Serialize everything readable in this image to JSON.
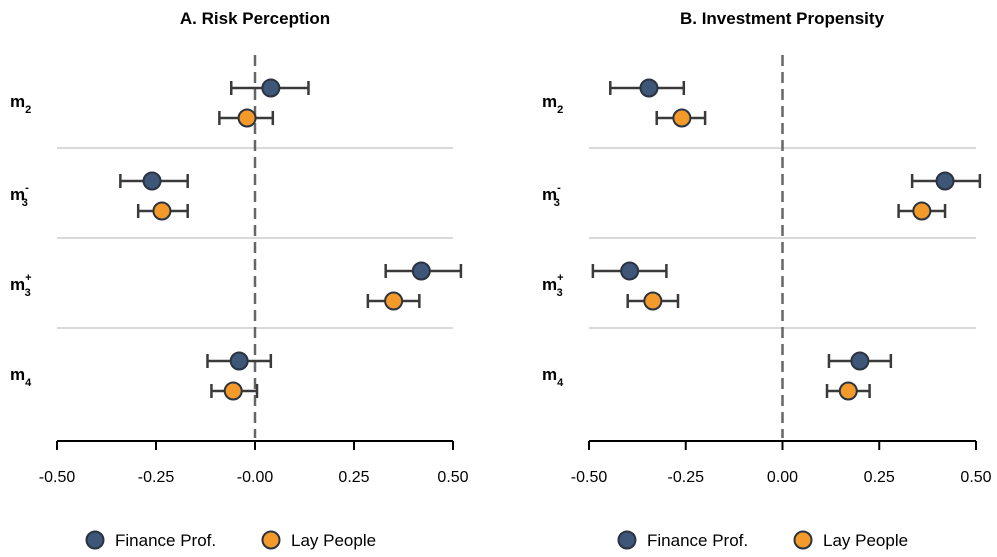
{
  "chart_data": [
    {
      "type": "scatter",
      "title": "A. Risk Perception",
      "xlabel": "",
      "ylabel": "",
      "xlim": [
        -0.5,
        0.5
      ],
      "xticks": [
        "-0.50",
        "-0.25",
        "-0.00",
        "0.25",
        "0.50"
      ],
      "reference_line_x": 0,
      "grid": "horizontal separators between categories",
      "categories": [
        {
          "base": "m",
          "sub": "2",
          "sup": ""
        },
        {
          "base": "m",
          "sub": "3",
          "sup": "-"
        },
        {
          "base": "m",
          "sub": "3",
          "sup": "+"
        },
        {
          "base": "m",
          "sub": "4",
          "sup": ""
        }
      ],
      "series": [
        {
          "name": "Finance Prof.",
          "values": [
            0.04,
            -0.26,
            0.42,
            -0.04
          ],
          "ci_low": [
            -0.06,
            -0.34,
            0.33,
            -0.12
          ],
          "ci_high": [
            0.135,
            -0.17,
            0.52,
            0.04
          ]
        },
        {
          "name": "Lay People",
          "values": [
            -0.02,
            -0.235,
            0.35,
            -0.055
          ],
          "ci_low": [
            -0.09,
            -0.295,
            0.285,
            -0.11
          ],
          "ci_high": [
            0.045,
            -0.17,
            0.415,
            0.005
          ]
        }
      ],
      "legend": "bottom"
    },
    {
      "type": "scatter",
      "title": "B. Investment Propensity",
      "xlabel": "",
      "ylabel": "",
      "xlim": [
        -0.5,
        0.5
      ],
      "xticks": [
        "-0.50",
        "-0.25",
        "0.00",
        "0.25",
        "0.50"
      ],
      "reference_line_x": 0,
      "grid": "horizontal separators between categories",
      "categories": [
        {
          "base": "m",
          "sub": "2",
          "sup": ""
        },
        {
          "base": "m",
          "sub": "3",
          "sup": "-"
        },
        {
          "base": "m",
          "sub": "3",
          "sup": "+"
        },
        {
          "base": "m",
          "sub": "4",
          "sup": ""
        }
      ],
      "series": [
        {
          "name": "Finance Prof.",
          "values": [
            -0.345,
            0.42,
            -0.395,
            0.2
          ],
          "ci_low": [
            -0.445,
            0.335,
            -0.49,
            0.12
          ],
          "ci_high": [
            -0.255,
            0.51,
            -0.3,
            0.28
          ]
        },
        {
          "name": "Lay People",
          "values": [
            -0.26,
            0.36,
            -0.335,
            0.17
          ],
          "ci_low": [
            -0.325,
            0.3,
            -0.4,
            0.115
          ],
          "ci_high": [
            -0.2,
            0.42,
            -0.27,
            0.225
          ]
        }
      ],
      "legend": "bottom"
    }
  ],
  "colors": {
    "finance": "#3e5677",
    "lay": "#f49a2b",
    "marker_stroke": "#2b3340",
    "errorbar": "#3a3a3a",
    "refline": "#666666",
    "separator": "#d9d9d9"
  }
}
